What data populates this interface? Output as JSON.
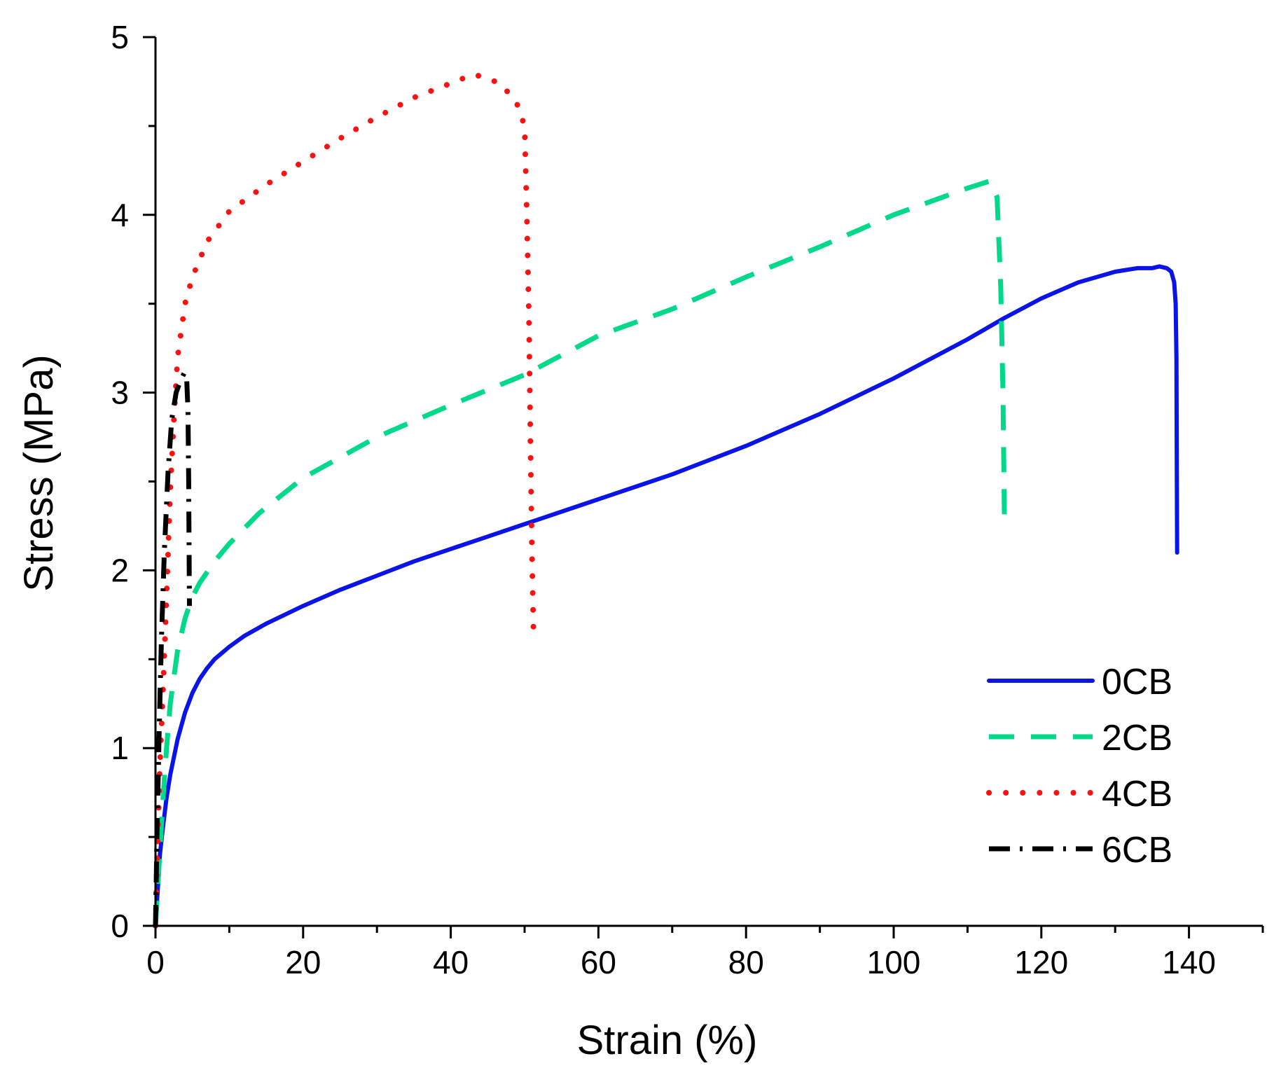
{
  "chart_data": {
    "type": "line",
    "title": "",
    "xlabel": "Strain (%)",
    "ylabel": "Stress (MPa)",
    "xlim": [
      0,
      150
    ],
    "ylim": [
      0,
      5
    ],
    "xticks": [
      0,
      20,
      40,
      60,
      80,
      100,
      120,
      140
    ],
    "yticks": [
      0,
      1,
      2,
      3,
      4,
      5
    ],
    "grid": false,
    "legend_position": "bottom-right",
    "series": [
      {
        "name": "0CB",
        "color": "#0a14e6",
        "style": "solid",
        "x": [
          0,
          0.3,
          0.6,
          1,
          1.5,
          2,
          3,
          4,
          5,
          6,
          7,
          8,
          10,
          12,
          15,
          20,
          25,
          30,
          35,
          40,
          45,
          50,
          55,
          60,
          65,
          70,
          75,
          80,
          85,
          90,
          95,
          100,
          105,
          110,
          115,
          120,
          125,
          130,
          133,
          135,
          136,
          137,
          137.6,
          138,
          138.2,
          138.3,
          138.35,
          138.4
        ],
        "y": [
          0,
          0.2,
          0.4,
          0.55,
          0.72,
          0.85,
          1.05,
          1.2,
          1.31,
          1.39,
          1.45,
          1.5,
          1.57,
          1.63,
          1.7,
          1.8,
          1.89,
          1.97,
          2.05,
          2.12,
          2.19,
          2.26,
          2.33,
          2.4,
          2.47,
          2.54,
          2.62,
          2.7,
          2.79,
          2.88,
          2.98,
          3.08,
          3.19,
          3.3,
          3.42,
          3.53,
          3.62,
          3.68,
          3.7,
          3.7,
          3.71,
          3.7,
          3.68,
          3.62,
          3.5,
          3.2,
          2.6,
          2.1
        ]
      },
      {
        "name": "2CB",
        "color": "#00d88a",
        "style": "dashed",
        "x": [
          0,
          0.5,
          1,
          1.5,
          2,
          3,
          4,
          5,
          6,
          8,
          10,
          14,
          20,
          30,
          40,
          50,
          60,
          70,
          80,
          90,
          100,
          110,
          113,
          114,
          114.5,
          114.8,
          115
        ],
        "y": [
          0,
          0.35,
          0.7,
          1.0,
          1.25,
          1.55,
          1.73,
          1.85,
          1.93,
          2.05,
          2.15,
          2.32,
          2.52,
          2.75,
          2.93,
          3.1,
          3.32,
          3.47,
          3.65,
          3.82,
          4.0,
          4.15,
          4.19,
          4.1,
          3.6,
          3.0,
          2.3
        ]
      },
      {
        "name": "4CB",
        "color": "#ff1010",
        "style": "dotted",
        "x": [
          0,
          0.3,
          0.6,
          1,
          1.5,
          2,
          2.5,
          3,
          4,
          5,
          7,
          10,
          15,
          20,
          25,
          30,
          35,
          40,
          43,
          45,
          47,
          49,
          50,
          50.3,
          50.6,
          50.8,
          51,
          51.2
        ],
        "y": [
          0,
          0.5,
          0.9,
          1.3,
          1.85,
          2.45,
          2.85,
          3.2,
          3.5,
          3.65,
          3.85,
          4.02,
          4.17,
          4.3,
          4.43,
          4.55,
          4.66,
          4.74,
          4.79,
          4.77,
          4.73,
          4.62,
          4.5,
          4.0,
          3.4,
          2.7,
          2.1,
          1.68
        ]
      },
      {
        "name": "6CB",
        "color": "#000000",
        "style": "dashdot",
        "x": [
          0,
          0.2,
          0.5,
          0.8,
          1.2,
          1.7,
          2.2,
          2.8,
          3.4,
          3.9,
          4.2,
          4.4,
          4.5,
          4.55,
          4.6
        ],
        "y": [
          0,
          0.5,
          1.1,
          1.6,
          2.1,
          2.55,
          2.85,
          3.0,
          3.07,
          3.11,
          3.1,
          2.9,
          2.5,
          2.1,
          1.8
        ]
      }
    ]
  }
}
